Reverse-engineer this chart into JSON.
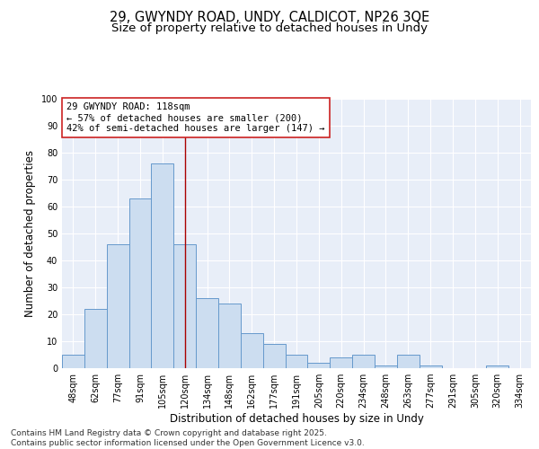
{
  "title1": "29, GWYNDY ROAD, UNDY, CALDICOT, NP26 3QE",
  "title2": "Size of property relative to detached houses in Undy",
  "xlabel": "Distribution of detached houses by size in Undy",
  "ylabel": "Number of detached properties",
  "categories": [
    "48sqm",
    "62sqm",
    "77sqm",
    "91sqm",
    "105sqm",
    "120sqm",
    "134sqm",
    "148sqm",
    "162sqm",
    "177sqm",
    "191sqm",
    "205sqm",
    "220sqm",
    "234sqm",
    "248sqm",
    "263sqm",
    "277sqm",
    "291sqm",
    "305sqm",
    "320sqm",
    "334sqm"
  ],
  "values": [
    5,
    22,
    46,
    63,
    76,
    46,
    26,
    24,
    13,
    9,
    5,
    2,
    4,
    5,
    1,
    5,
    1,
    0,
    0,
    1,
    0
  ],
  "bar_color": "#ccddf0",
  "bar_edge_color": "#6699cc",
  "bar_width": 1.0,
  "property_line_x": 5.0,
  "property_line_color": "#aa0000",
  "annotation_line1": "29 GWYNDY ROAD: 118sqm",
  "annotation_line2": "← 57% of detached houses are smaller (200)",
  "annotation_line3": "42% of semi-detached houses are larger (147) →",
  "annotation_box_color": "#ffffff",
  "annotation_box_edge_color": "#cc2222",
  "ylim": [
    0,
    100
  ],
  "yticks": [
    0,
    10,
    20,
    30,
    40,
    50,
    60,
    70,
    80,
    90,
    100
  ],
  "bg_color": "#e8eef8",
  "grid_color": "#ffffff",
  "footer_line1": "Contains HM Land Registry data © Crown copyright and database right 2025.",
  "footer_line2": "Contains public sector information licensed under the Open Government Licence v3.0.",
  "title_fontsize": 10.5,
  "subtitle_fontsize": 9.5,
  "axis_label_fontsize": 8.5,
  "tick_fontsize": 7,
  "annotation_fontsize": 7.5,
  "footer_fontsize": 6.5
}
